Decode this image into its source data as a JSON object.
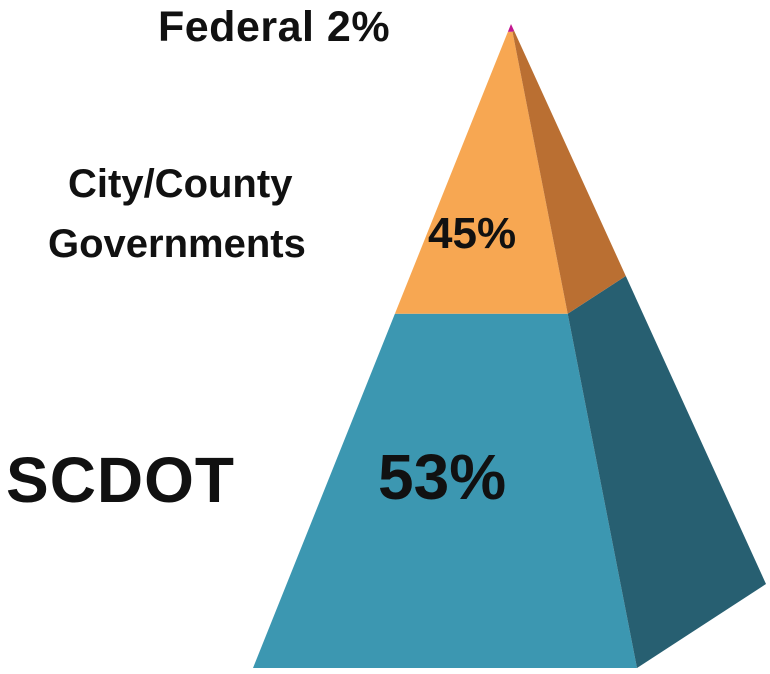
{
  "chart_data": {
    "type": "pyramid",
    "title": "",
    "segments": [
      {
        "label": "Federal",
        "value": 2,
        "display": "2%",
        "color": "#c2188f",
        "side_color": "#8a1166"
      },
      {
        "label_lines": [
          "City/County",
          "Governments"
        ],
        "value": 45,
        "display": "45%",
        "color": "#f7a752",
        "side_color": "#ba6f32"
      },
      {
        "label": "SCDOT",
        "value": 53,
        "display": "53%",
        "color": "#3c97b1",
        "side_color": "#275f71"
      }
    ],
    "federal_label_text": "Federal  2%"
  }
}
